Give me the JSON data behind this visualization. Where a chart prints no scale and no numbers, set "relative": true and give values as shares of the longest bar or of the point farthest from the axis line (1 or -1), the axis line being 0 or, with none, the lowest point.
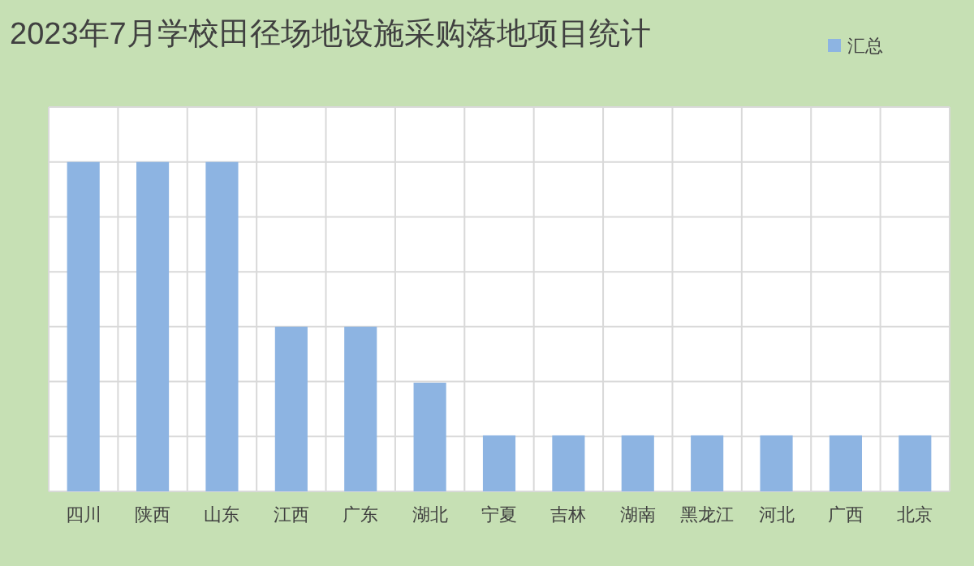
{
  "chart_data": {
    "type": "bar",
    "title": "2023年7月学校田径场地设施采购落地项目统计",
    "categories": [
      "四川",
      "陕西",
      "山东",
      "江西",
      "广东",
      "湖北",
      "宁夏",
      "吉林",
      "湖南",
      "黑龙江",
      "河北",
      "广西",
      "北京"
    ],
    "series": [
      {
        "name": "汇总",
        "color": "#8db4e2",
        "values": [
          1,
          1,
          1,
          0.5,
          0.5,
          0.33,
          0.17,
          0.17,
          0.17,
          0.17,
          0.17,
          0.17,
          0.17
        ]
      }
    ],
    "relative": true,
    "grid": true,
    "legend": "top right"
  }
}
